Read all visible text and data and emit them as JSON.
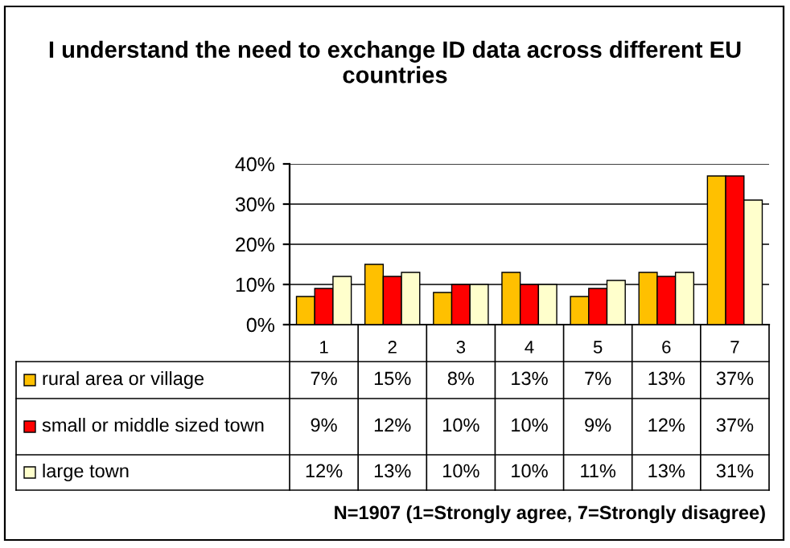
{
  "chart_data": {
    "type": "bar",
    "title": "I understand the need to exchange ID data across different EU countries",
    "categories": [
      "1",
      "2",
      "3",
      "4",
      "5",
      "6",
      "7"
    ],
    "series": [
      {
        "name": "rural area or village",
        "color": "#ffc000",
        "values": [
          7,
          15,
          8,
          13,
          7,
          13,
          37
        ],
        "value_labels": [
          "7%",
          "15%",
          "8%",
          "13%",
          "7%",
          "13%",
          "37%"
        ]
      },
      {
        "name": "small or middle sized town",
        "color": "#ff0000",
        "values": [
          9,
          12,
          10,
          10,
          9,
          12,
          37
        ],
        "value_labels": [
          "9%",
          "12%",
          "10%",
          "10%",
          "9%",
          "12%",
          "37%"
        ]
      },
      {
        "name": "large town",
        "color": "#ffffcc",
        "values": [
          12,
          13,
          10,
          10,
          11,
          13,
          31
        ],
        "value_labels": [
          "12%",
          "13%",
          "10%",
          "10%",
          "11%",
          "13%",
          "31%"
        ]
      }
    ],
    "ylim": [
      0,
      40
    ],
    "yticks": [
      {
        "value": 0,
        "label": "0%"
      },
      {
        "value": 10,
        "label": "10%"
      },
      {
        "value": 20,
        "label": "20%"
      },
      {
        "value": 30,
        "label": "30%"
      },
      {
        "value": 40,
        "label": "40%"
      }
    ],
    "grid": "y",
    "legend": "bottom left",
    "annotations": [
      "N=1907 (1=Strongly agree, 7=Strongly disagree)"
    ]
  }
}
